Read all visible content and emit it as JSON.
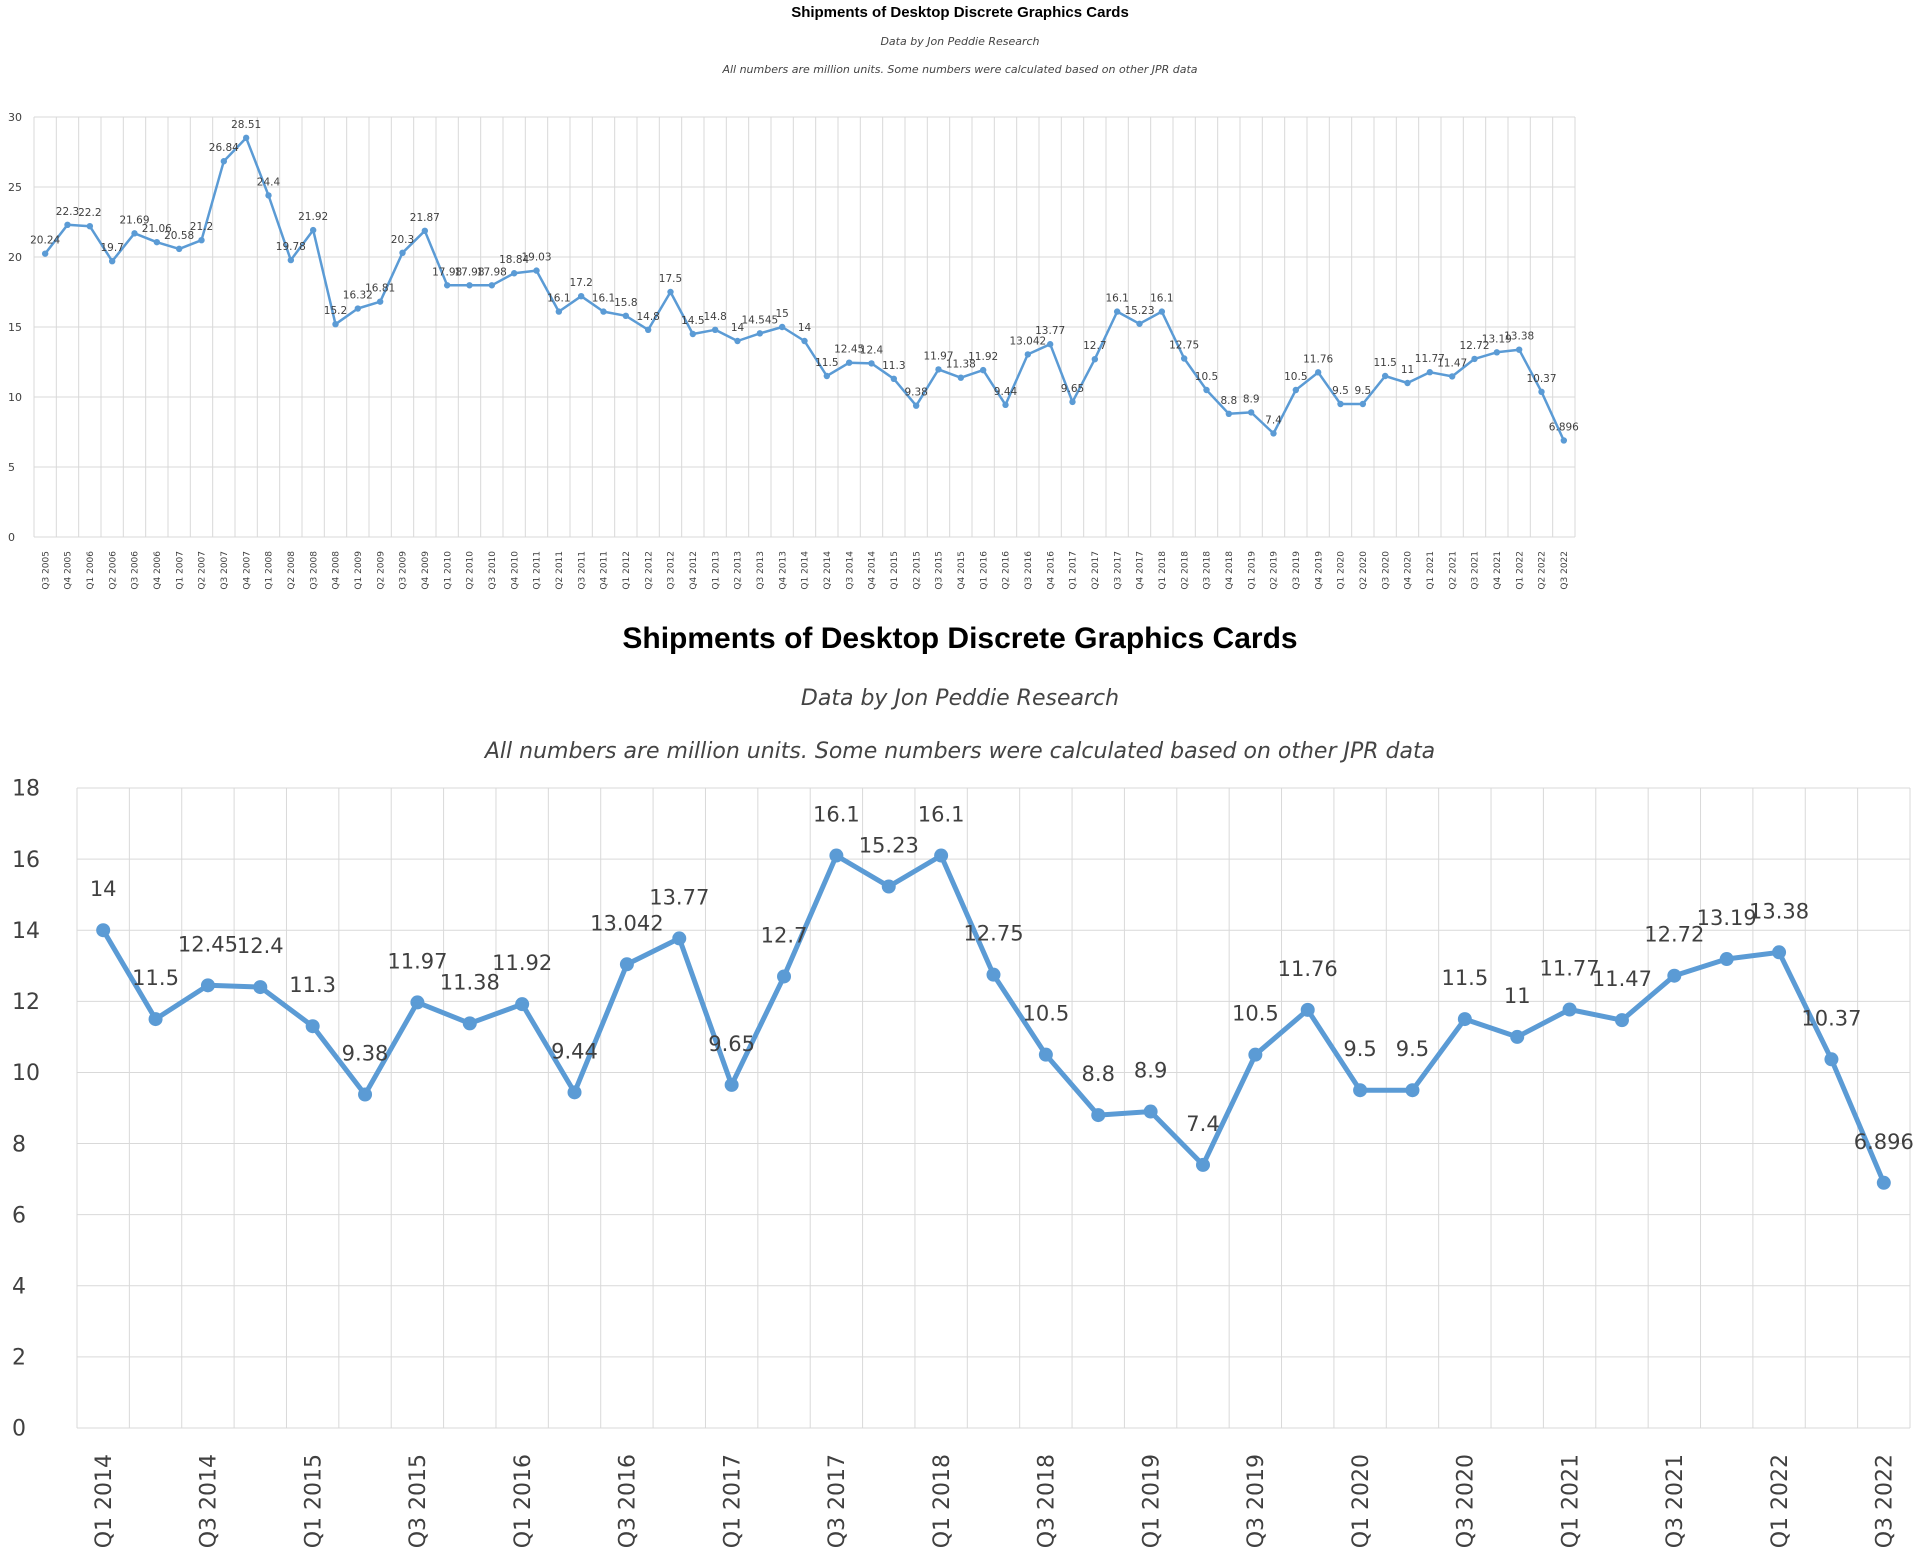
{
  "chart_data": [
    {
      "type": "line",
      "title": "Shipments of Desktop Discrete Graphics Cards",
      "subtitle": "Data by Jon Peddie Research",
      "note": "All numbers are million units. Some numbers were calculated based on other JPR data",
      "xlabel": "",
      "ylabel": "",
      "ylim": [
        0,
        30
      ],
      "yticks": [
        0,
        5,
        10,
        15,
        20,
        25,
        30
      ],
      "grid": true,
      "categories": [
        "Q3 2005",
        "Q4 2005",
        "Q1 2006",
        "Q2 2006",
        "Q3 2006",
        "Q4 2006",
        "Q1 2007",
        "Q2 2007",
        "Q3 2007",
        "Q4 2007",
        "Q1 2008",
        "Q2 2008",
        "Q3 2008",
        "Q4 2008",
        "Q1 2009",
        "Q2 2009",
        "Q3 2009",
        "Q4 2009",
        "Q1 2010",
        "Q2 2010",
        "Q3 2010",
        "Q4 2010",
        "Q1 2011",
        "Q2 2011",
        "Q3 2011",
        "Q4 2011",
        "Q1 2012",
        "Q2 2012",
        "Q3 2012",
        "Q4 2012",
        "Q1 2013",
        "Q2 2013",
        "Q3 2013",
        "Q4 2013",
        "Q1 2014",
        "Q2 2014",
        "Q3 2014",
        "Q4 2014",
        "Q1 2015",
        "Q2 2015",
        "Q3 2015",
        "Q4 2015",
        "Q1 2016",
        "Q2 2016",
        "Q3 2016",
        "Q4 2016",
        "Q1 2017",
        "Q2 2017",
        "Q3 2017",
        "Q4 2017",
        "Q1 2018",
        "Q2 2018",
        "Q3 2018",
        "Q4 2018",
        "Q1 2019",
        "Q2 2019",
        "Q3 2019",
        "Q4 2019",
        "Q1 2020",
        "Q2 2020",
        "Q3 2020",
        "Q4 2020",
        "Q1 2021",
        "Q2 2021",
        "Q3 2021",
        "Q4 2021",
        "Q1 2022",
        "Q2 2022",
        "Q3 2022"
      ],
      "values": [
        20.24,
        22.3,
        22.2,
        19.7,
        21.69,
        21.06,
        20.58,
        21.2,
        26.84,
        28.51,
        24.4,
        19.78,
        21.92,
        15.2,
        16.32,
        16.81,
        20.3,
        21.87,
        17.98,
        17.98,
        17.98,
        18.84,
        19.03,
        16.1,
        17.2,
        16.1,
        15.8,
        14.8,
        17.5,
        14.5,
        14.8,
        14,
        14.545,
        15,
        14,
        11.5,
        12.45,
        12.4,
        11.3,
        9.38,
        11.97,
        11.38,
        11.92,
        9.44,
        13.042,
        13.77,
        9.65,
        12.7,
        16.1,
        15.23,
        16.1,
        12.75,
        10.5,
        8.8,
        8.9,
        7.4,
        10.5,
        11.76,
        9.5,
        9.5,
        11.5,
        11,
        11.77,
        11.47,
        12.72,
        13.19,
        13.38,
        10.37,
        6.896
      ],
      "labels": [
        "20.24",
        "22.3",
        "22.2",
        "19.7",
        "21.69",
        "21.06",
        "20.58",
        "21.2",
        "26.84",
        "28.51",
        "24.4",
        "19.78",
        "21.92",
        "15.2",
        "16.32",
        "16.81",
        "20.3",
        "21.87",
        "17.98",
        "17.98",
        "17.98",
        "18.84",
        "19.03",
        "16.1",
        "17.2",
        "16.1",
        "15.8",
        "14.8",
        "17.5",
        "14.5",
        "14.8",
        "14",
        "14.545",
        "15",
        "14",
        "11.5",
        "12.45",
        "12.4",
        "11.3",
        "9.38",
        "11.97",
        "11.38",
        "11.92",
        "9.44",
        "13.042",
        "13.77",
        "9.65",
        "12.7",
        "16.1",
        "15.23",
        "16.1",
        "12.75",
        "10.5",
        "8.8",
        "8.9",
        "7.4",
        "10.5",
        "11.76",
        "9.5",
        "9.5",
        "11.5",
        "11",
        "11.77",
        "11.47",
        "12.72",
        "13.19",
        "13.38",
        "10.37",
        "6.896"
      ],
      "color": "#5b9bd5"
    },
    {
      "type": "line",
      "title": "Shipments of Desktop Discrete Graphics Cards",
      "subtitle": "Data by Jon Peddie Research",
      "note": "All numbers are million units. Some numbers were calculated based on other JPR data",
      "xlabel": "",
      "ylabel": "",
      "ylim": [
        0,
        18
      ],
      "yticks": [
        0,
        2,
        4,
        6,
        8,
        10,
        12,
        14,
        16,
        18
      ],
      "grid": true,
      "categories": [
        "Q1 2014",
        "Q2 2014",
        "Q3 2014",
        "Q4 2014",
        "Q1 2015",
        "Q2 2015",
        "Q3 2015",
        "Q4 2015",
        "Q1 2016",
        "Q2 2016",
        "Q3 2016",
        "Q4 2016",
        "Q1 2017",
        "Q2 2017",
        "Q3 2017",
        "Q4 2017",
        "Q1 2018",
        "Q2 2018",
        "Q3 2018",
        "Q4 2018",
        "Q1 2019",
        "Q2 2019",
        "Q3 2019",
        "Q4 2019",
        "Q1 2020",
        "Q2 2020",
        "Q3 2020",
        "Q4 2020",
        "Q1 2021",
        "Q2 2021",
        "Q3 2021",
        "Q4 2021",
        "Q1 2022",
        "Q2 2022",
        "Q3 2022"
      ],
      "x_tick_labels": [
        "Q1 2014",
        "",
        "Q3 2014",
        "",
        "Q1 2015",
        "",
        "Q3 2015",
        "",
        "Q1 2016",
        "",
        "Q3 2016",
        "",
        "Q1 2017",
        "",
        "Q3 2017",
        "",
        "Q1 2018",
        "",
        "Q3 2018",
        "",
        "Q1 2019",
        "",
        "Q3 2019",
        "",
        "Q1 2020",
        "",
        "Q3 2020",
        "",
        "Q1 2021",
        "",
        "Q3 2021",
        "",
        "Q1 2022",
        "",
        "Q3 2022"
      ],
      "values": [
        14,
        11.5,
        12.45,
        12.4,
        11.3,
        9.38,
        11.97,
        11.38,
        11.92,
        9.44,
        13.042,
        13.77,
        9.65,
        12.7,
        16.1,
        15.23,
        16.1,
        12.75,
        10.5,
        8.8,
        8.9,
        7.4,
        10.5,
        11.76,
        9.5,
        9.5,
        11.5,
        11,
        11.77,
        11.47,
        12.72,
        13.19,
        13.38,
        10.37,
        6.896
      ],
      "labels": [
        "14",
        "11.5",
        "12.45",
        "12.4",
        "11.3",
        "9.38",
        "11.97",
        "11.38",
        "11.92",
        "9.44",
        "13.042",
        "13.77",
        "9.65",
        "12.7",
        "16.1",
        "15.23",
        "16.1",
        "12.75",
        "10.5",
        "8.8",
        "8.9",
        "7.4",
        "10.5",
        "11.76",
        "9.5",
        "9.5",
        "11.5",
        "11",
        "11.77",
        "11.47",
        "12.72",
        "13.19",
        "13.38",
        "10.37",
        "6.896"
      ],
      "color": "#5b9bd5"
    }
  ]
}
